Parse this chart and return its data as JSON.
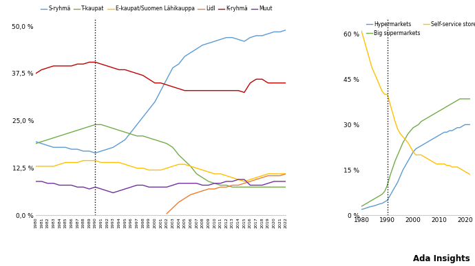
{
  "left_chart": {
    "ylim": [
      0,
      52
    ],
    "yticks": [
      0.0,
      12.5,
      25.0,
      37.5,
      50.0
    ],
    "ytick_labels": [
      "0,0 %",
      "12,5 %",
      "25,0 %",
      "37,5 %",
      "50,0 %"
    ],
    "vline_x": 1990,
    "series": {
      "S-ryhmä": {
        "color": "#5b9bd5",
        "years": [
          1980,
          1981,
          1982,
          1983,
          1984,
          1985,
          1986,
          1987,
          1988,
          1989,
          1990,
          1991,
          1992,
          1993,
          1994,
          1995,
          1996,
          1997,
          1998,
          1999,
          2000,
          2001,
          2002,
          2003,
          2004,
          2005,
          2006,
          2007,
          2008,
          2009,
          2010,
          2011,
          2012,
          2013,
          2014,
          2015,
          2016,
          2017,
          2018,
          2019,
          2020,
          2021,
          2022
        ],
        "values": [
          19.5,
          19,
          18.5,
          18,
          18,
          18,
          17.5,
          17.5,
          17,
          17,
          16.5,
          17,
          17.5,
          18,
          19,
          20,
          22,
          24,
          26,
          28,
          30,
          33,
          36,
          39,
          40,
          42,
          43,
          44,
          45,
          45.5,
          46,
          46.5,
          47,
          47,
          46.5,
          46,
          47,
          47.5,
          47.5,
          48,
          48.5,
          48.5,
          49
        ]
      },
      "T-kaupat": {
        "color": "#70ad47",
        "years": [
          1980,
          1981,
          1982,
          1983,
          1984,
          1985,
          1986,
          1987,
          1988,
          1989,
          1990,
          1991,
          1992,
          1993,
          1994,
          1995,
          1996,
          1997,
          1998,
          1999,
          2000,
          2001,
          2002,
          2003,
          2004,
          2005,
          2006,
          2007,
          2008,
          2009,
          2010,
          2011,
          2012,
          2013,
          2014,
          2015,
          2016,
          2017,
          2018,
          2019,
          2020,
          2021,
          2022
        ],
        "values": [
          19,
          19.5,
          20,
          20.5,
          21,
          21.5,
          22,
          22.5,
          23,
          23.5,
          24,
          24,
          23.5,
          23,
          22.5,
          22,
          21.5,
          21,
          21,
          20.5,
          20,
          19.5,
          19,
          18,
          16,
          14.5,
          13,
          11,
          10,
          9,
          8.5,
          8,
          8,
          7.5,
          7.5,
          7.5,
          7.5,
          7.5,
          7.5,
          7.5,
          7.5,
          7.5,
          7.5
        ]
      },
      "E-kaupat/Suomen Lähikauppa": {
        "color": "#ffc000",
        "years": [
          1980,
          1981,
          1982,
          1983,
          1984,
          1985,
          1986,
          1987,
          1988,
          1989,
          1990,
          1991,
          1992,
          1993,
          1994,
          1995,
          1996,
          1997,
          1998,
          1999,
          2000,
          2001,
          2002,
          2003,
          2004,
          2005,
          2006,
          2007,
          2008,
          2009,
          2010,
          2011,
          2012,
          2013,
          2014,
          2015,
          2016,
          2017,
          2018,
          2019,
          2020,
          2021,
          2022
        ],
        "values": [
          13,
          13,
          13,
          13,
          13.5,
          14,
          14,
          14,
          14.5,
          14.5,
          14.5,
          14,
          14,
          14,
          14,
          13.5,
          13,
          12.5,
          12.5,
          12,
          12,
          12,
          12.5,
          13,
          13.5,
          13.5,
          13,
          12.5,
          12,
          11.5,
          11,
          11,
          10.5,
          10,
          9.5,
          9,
          9.5,
          10,
          10.5,
          11,
          11,
          11,
          11
        ]
      },
      "Lidl": {
        "color": "#ed7d31",
        "years": [
          2002,
          2003,
          2004,
          2005,
          2006,
          2007,
          2008,
          2009,
          2010,
          2011,
          2012,
          2013,
          2014,
          2015,
          2016,
          2017,
          2018,
          2019,
          2020,
          2021,
          2022
        ],
        "values": [
          0.5,
          2,
          3.5,
          4.5,
          5.5,
          6,
          6.5,
          7,
          7,
          7.5,
          7.5,
          8,
          8,
          8.5,
          9,
          9.5,
          10,
          10.5,
          10.5,
          10.5,
          11
        ]
      },
      "K-ryhmä": {
        "color": "#c00000",
        "years": [
          1980,
          1981,
          1982,
          1983,
          1984,
          1985,
          1986,
          1987,
          1988,
          1989,
          1990,
          1991,
          1992,
          1993,
          1994,
          1995,
          1996,
          1997,
          1998,
          1999,
          2000,
          2001,
          2002,
          2003,
          2004,
          2005,
          2006,
          2007,
          2008,
          2009,
          2010,
          2011,
          2012,
          2013,
          2014,
          2015,
          2016,
          2017,
          2018,
          2019,
          2020,
          2021,
          2022
        ],
        "values": [
          37.5,
          38.5,
          39,
          39.5,
          39.5,
          39.5,
          39.5,
          40,
          40,
          40.5,
          40.5,
          40,
          39.5,
          39,
          38.5,
          38.5,
          38,
          37.5,
          37,
          36,
          35,
          35,
          34.5,
          34,
          33.5,
          33,
          33,
          33,
          33,
          33,
          33,
          33,
          33,
          33,
          33,
          32.5,
          35,
          36,
          36,
          35,
          35,
          35,
          35
        ]
      },
      "Muut": {
        "color": "#7030a0",
        "years": [
          1980,
          1981,
          1982,
          1983,
          1984,
          1985,
          1986,
          1987,
          1988,
          1989,
          1990,
          1991,
          1992,
          1993,
          1994,
          1995,
          1996,
          1997,
          1998,
          1999,
          2000,
          2001,
          2002,
          2003,
          2004,
          2005,
          2006,
          2007,
          2008,
          2009,
          2010,
          2011,
          2012,
          2013,
          2014,
          2015,
          2016,
          2017,
          2018,
          2019,
          2020,
          2021,
          2022
        ],
        "values": [
          9,
          9,
          8.5,
          8.5,
          8,
          8,
          8,
          7.5,
          7.5,
          7,
          7.5,
          7,
          6.5,
          6,
          6.5,
          7,
          7.5,
          8,
          8,
          7.5,
          7.5,
          7.5,
          7.5,
          8,
          8.5,
          8.5,
          8.5,
          8.5,
          8,
          8,
          8.5,
          8.5,
          9,
          9,
          9.5,
          9.5,
          8,
          8,
          8,
          8.5,
          9,
          9,
          9
        ]
      }
    },
    "legend_order": [
      "S-ryhmä",
      "T-kaupat",
      "E-kaupat/Suomen Lähikauppa",
      "Lidl",
      "K-ryhmä",
      "Muut"
    ]
  },
  "right_chart": {
    "ylim": [
      0,
      65
    ],
    "yticks": [
      0,
      15,
      30,
      45,
      60
    ],
    "ytick_labels": [
      "0 %",
      "15 %",
      "30 %",
      "45 %",
      "60 %"
    ],
    "xticks": [
      1980,
      1990,
      2000,
      2010,
      2020
    ],
    "vline_x": 1990,
    "series": {
      "Hypermarkets": {
        "color": "#5b9bd5",
        "years": [
          1980,
          1981,
          1982,
          1983,
          1984,
          1985,
          1986,
          1987,
          1988,
          1989,
          1990,
          1991,
          1992,
          1993,
          1994,
          1995,
          1996,
          1997,
          1998,
          1999,
          2000,
          2001,
          2002,
          2003,
          2004,
          2005,
          2006,
          2007,
          2008,
          2009,
          2010,
          2011,
          2012,
          2013,
          2014,
          2015,
          2016,
          2017,
          2018,
          2019,
          2020,
          2021,
          2022
        ],
        "values": [
          2,
          2.2,
          2.5,
          2.8,
          3,
          3.2,
          3.5,
          3.8,
          4,
          4.5,
          5,
          6.5,
          8,
          9.5,
          11,
          13,
          15,
          16.5,
          18,
          19.5,
          21,
          22,
          22.5,
          23,
          23.5,
          24,
          24.5,
          25,
          25.5,
          26,
          26.5,
          27,
          27.5,
          27.5,
          28,
          28,
          28.5,
          29,
          29,
          29.5,
          30,
          30,
          30
        ]
      },
      "Big supermarkets": {
        "color": "#70ad47",
        "years": [
          1980,
          1981,
          1982,
          1983,
          1984,
          1985,
          1986,
          1987,
          1988,
          1989,
          1990,
          1991,
          1992,
          1993,
          1994,
          1995,
          1996,
          1997,
          1998,
          1999,
          2000,
          2001,
          2002,
          2003,
          2004,
          2005,
          2006,
          2007,
          2008,
          2009,
          2010,
          2011,
          2012,
          2013,
          2014,
          2015,
          2016,
          2017,
          2018,
          2019,
          2020,
          2021,
          2022
        ],
        "values": [
          3,
          3.5,
          4,
          4.5,
          5,
          5.5,
          6,
          6.5,
          7,
          8,
          10,
          13,
          15.5,
          18,
          20,
          22,
          24,
          25.5,
          27,
          28,
          29,
          29.5,
          30,
          31,
          31.5,
          32,
          32.5,
          33,
          33.5,
          34,
          34.5,
          35,
          35.5,
          36,
          36.5,
          37,
          37.5,
          38,
          38.5,
          38.5,
          38.5,
          38.5,
          38.5
        ]
      },
      "Self-service stores": {
        "color": "#ffc000",
        "years": [
          1980,
          1981,
          1982,
          1983,
          1984,
          1985,
          1986,
          1987,
          1988,
          1989,
          1990,
          1991,
          1992,
          1993,
          1994,
          1995,
          1996,
          1997,
          1998,
          1999,
          2000,
          2001,
          2002,
          2003,
          2004,
          2005,
          2006,
          2007,
          2008,
          2009,
          2010,
          2011,
          2012,
          2013,
          2014,
          2015,
          2016,
          2017,
          2018,
          2019,
          2020,
          2021,
          2022
        ],
        "values": [
          61,
          58,
          55,
          52,
          49,
          47,
          45,
          43,
          41,
          40,
          40,
          37,
          34,
          31,
          28.5,
          27,
          26,
          25,
          24,
          22.5,
          21,
          20,
          20,
          20,
          19.5,
          19,
          18.5,
          18,
          17.5,
          17,
          17,
          17,
          17,
          16.5,
          16.5,
          16,
          16,
          16,
          15.5,
          15,
          14.5,
          14,
          13.5
        ]
      }
    },
    "legend_order": [
      "Hypermarkets",
      "Big supermarkets",
      "Self-service stores"
    ]
  },
  "watermark": "Ada Insights",
  "background_color": "#ffffff"
}
